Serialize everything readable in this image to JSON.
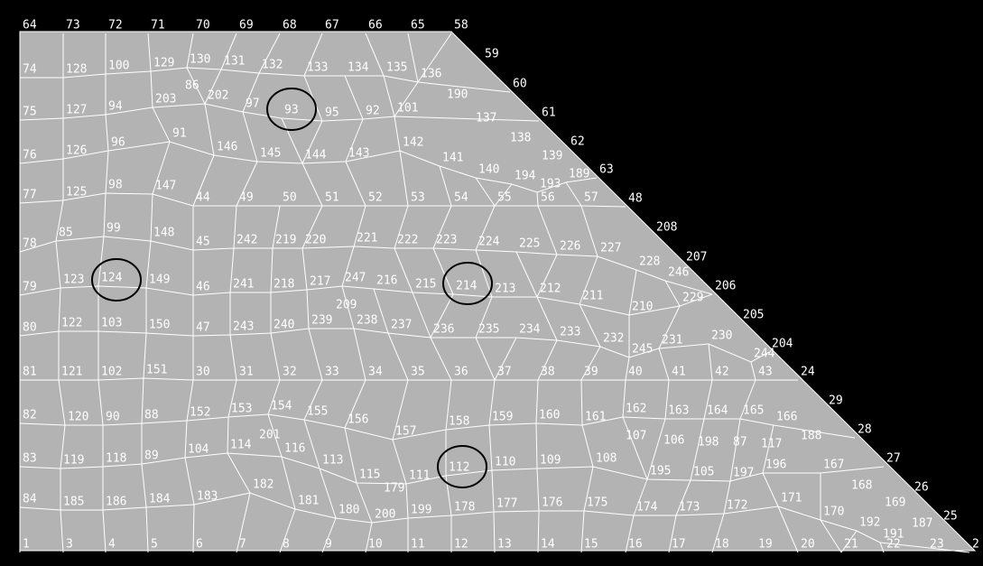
{
  "nodes": [
    "64",
    "73",
    "72",
    "71",
    "70",
    "69",
    "68",
    "67",
    "66",
    "65",
    "58",
    "59",
    "60",
    "61",
    "62",
    "63",
    "48",
    "208",
    "207",
    "206",
    "205",
    "204",
    "24",
    "29",
    "28",
    "27",
    "26",
    "25",
    "2",
    "74",
    "128",
    "100",
    "129",
    "130",
    "131",
    "132",
    "133",
    "134",
    "135",
    "136",
    "75",
    "127",
    "94",
    "203",
    "202",
    "97",
    "93",
    "95",
    "92",
    "101",
    "76",
    "126",
    "96",
    "91",
    "146",
    "145",
    "144",
    "143",
    "142",
    "141",
    "140",
    "194",
    "193",
    "189",
    "77",
    "125",
    "98",
    "147",
    "44",
    "49",
    "50",
    "51",
    "52",
    "53",
    "54",
    "55",
    "56",
    "57",
    "78",
    "85",
    "99",
    "148",
    "45",
    "242",
    "219",
    "220",
    "221",
    "222",
    "223",
    "224",
    "225",
    "226",
    "227",
    "228",
    "246",
    "79",
    "123",
    "124",
    "149",
    "46",
    "241",
    "218",
    "217",
    "247",
    "216",
    "215",
    "214",
    "213",
    "212",
    "211",
    "210",
    "229",
    "80",
    "122",
    "103",
    "150",
    "47",
    "243",
    "240",
    "239",
    "238",
    "237",
    "236",
    "235",
    "234",
    "233",
    "232",
    "245",
    "231",
    "230",
    "244",
    "81",
    "121",
    "102",
    "151",
    "30",
    "31",
    "32",
    "33",
    "34",
    "35",
    "36",
    "37",
    "38",
    "39",
    "40",
    "41",
    "42",
    "43",
    "82",
    "120",
    "90",
    "88",
    "152",
    "153",
    "154",
    "155",
    "156",
    "157",
    "158",
    "159",
    "160",
    "161",
    "162",
    "163",
    "164",
    "165",
    "166",
    "83",
    "119",
    "118",
    "89",
    "104",
    "114",
    "116",
    "113",
    "115",
    "111",
    "112",
    "110",
    "109",
    "108",
    "195",
    "105",
    "197",
    "196",
    "167",
    "84",
    "185",
    "186",
    "184",
    "183",
    "182",
    "181",
    "180",
    "200",
    "199",
    "178",
    "177",
    "176",
    "175",
    "174",
    "173",
    "172",
    "171",
    "170",
    "192",
    "191",
    "1",
    "3",
    "4",
    "5",
    "6",
    "7",
    "8",
    "9",
    "10",
    "11",
    "12",
    "13",
    "14",
    "15",
    "16",
    "17",
    "18",
    "19",
    "20",
    "21",
    "22",
    "23",
    "86",
    "190",
    "137",
    "138",
    "139",
    "201",
    "179",
    "209",
    "107",
    "106",
    "198",
    "87",
    "117",
    "188",
    "168",
    "169",
    "187"
  ]
}
